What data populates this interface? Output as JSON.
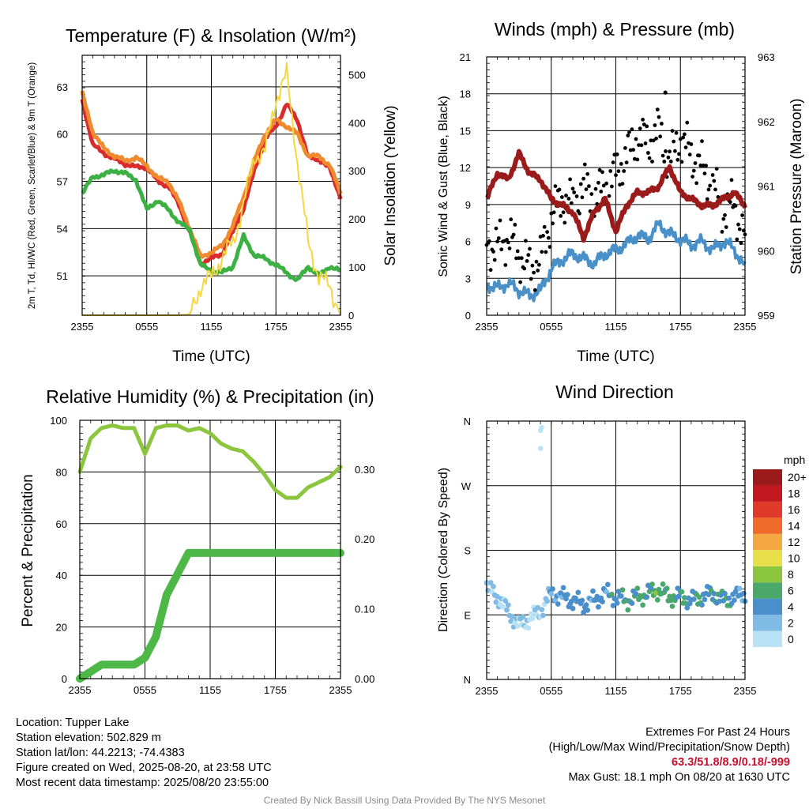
{
  "chart_data": [
    {
      "type": "line",
      "title": "Temperature (F) & Insolation (W/m²)",
      "xlabel": "Time (UTC)",
      "ylabel": "2m T, Td, HI/WC (Red, Green, Scarlet/Blue) & 9m T (Orange)",
      "y2label": "Solar Insolation (Yellow)",
      "x_ticks": [
        "2355",
        "0555",
        "1155",
        "1755",
        "2355"
      ],
      "ylim": [
        48.5,
        65
      ],
      "y_ticks": [
        51,
        54,
        57,
        60,
        63
      ],
      "y2lim": [
        0,
        540
      ],
      "y2_ticks": [
        0,
        100,
        200,
        300,
        400,
        500
      ],
      "x_hours": [
        0,
        1,
        2,
        3,
        4,
        5,
        6,
        7,
        8,
        9,
        10,
        11,
        12,
        13,
        14,
        15,
        16,
        17,
        18,
        19,
        20,
        21,
        22,
        23,
        24
      ],
      "series": [
        {
          "color": "#d92b2b",
          "axis": "left",
          "values": [
            62.2,
            59.3,
            58.8,
            58.4,
            58.1,
            57.9,
            57.9,
            57.0,
            56.7,
            55.5,
            53.8,
            51.8,
            52.1,
            52.4,
            53.8,
            55.3,
            57.7,
            59.7,
            60.5,
            61.9,
            60.9,
            58.5,
            58.4,
            57.8,
            56.0
          ]
        },
        {
          "color": "#f08a2e",
          "axis": "left",
          "values": [
            62.6,
            60.1,
            59.1,
            58.6,
            58.3,
            58.5,
            58.0,
            57.2,
            57.0,
            55.7,
            54.0,
            52.2,
            52.5,
            52.9,
            54.2,
            56.0,
            58.3,
            60.0,
            60.9,
            60.5,
            60.0,
            58.6,
            58.6,
            58.0,
            56.3
          ]
        },
        {
          "color": "#3cb043",
          "axis": "left",
          "values": [
            56.2,
            57.3,
            57.4,
            57.7,
            57.5,
            57.1,
            55.2,
            55.8,
            55.2,
            54.4,
            53.9,
            51.7,
            51.3,
            51.2,
            51.6,
            53.5,
            52.3,
            52.1,
            51.7,
            51.2,
            50.7,
            51.6,
            51.0,
            51.6,
            51.3
          ]
        },
        {
          "color": "#f5d742",
          "axis": "right",
          "values": [
            0,
            0,
            0,
            0,
            0,
            0,
            0,
            0,
            0,
            0,
            2,
            60,
            80,
            120,
            150,
            230,
            330,
            340,
            450,
            500,
            320,
            150,
            80,
            60,
            0
          ]
        }
      ]
    },
    {
      "type": "scatter",
      "title": "Winds (mph) & Pressure (mb)",
      "xlabel": "Time (UTC)",
      "ylabel": "Sonic Wind & Gust (Blue, Black)",
      "y2label": "Station Pressure (Maroon)",
      "x_ticks": [
        "2355",
        "0555",
        "1155",
        "1755",
        "2355"
      ],
      "ylim": [
        0,
        21
      ],
      "y_ticks": [
        0,
        3,
        6,
        9,
        12,
        15,
        18,
        21
      ],
      "y2lim": [
        959,
        963
      ],
      "y2_ticks": [
        959,
        960,
        961,
        962,
        963
      ],
      "x_hours": [
        0,
        1,
        2,
        3,
        4,
        5,
        6,
        7,
        8,
        9,
        10,
        11,
        12,
        13,
        14,
        15,
        16,
        17,
        18,
        19,
        20,
        21,
        22,
        23,
        24
      ],
      "series": [
        {
          "color": "#4a90c8",
          "kind": "line",
          "axis": "left",
          "values": [
            2.5,
            2.2,
            2.6,
            2.0,
            1.6,
            2.0,
            3.8,
            4.5,
            5.0,
            4.6,
            4.2,
            5.0,
            5.3,
            5.8,
            6.5,
            6.2,
            7.4,
            6.6,
            6.2,
            5.7,
            6.0,
            5.3,
            6.0,
            5.4,
            3.8
          ]
        },
        {
          "color": "#000000",
          "kind": "points",
          "axis": "left",
          "values": [
            6.0,
            5.5,
            6.5,
            5.0,
            3.8,
            4.5,
            8.0,
            9.5,
            9.0,
            10.5,
            9.5,
            10.5,
            11.5,
            13.0,
            14.5,
            14.0,
            15.0,
            12.5,
            14.5,
            13.0,
            12.0,
            10.5,
            8.5,
            9.0,
            6.0
          ]
        },
        {
          "color": "#9b1b1b",
          "kind": "line",
          "axis": "right",
          "values": [
            960.8,
            961.2,
            961.1,
            961.5,
            961.2,
            961.1,
            960.8,
            960.7,
            960.6,
            960.2,
            960.6,
            960.8,
            960.3,
            960.7,
            960.9,
            960.9,
            961.0,
            961.3,
            960.9,
            960.8,
            960.7,
            960.7,
            960.8,
            960.9,
            960.7
          ]
        },
        {
          "color": "#000000",
          "kind": "points",
          "label": "max gust",
          "axis": "left",
          "x_hour": 16.6,
          "values": [
            18.1
          ]
        }
      ]
    },
    {
      "type": "line",
      "title": "Relative Humidity (%) & Precipitation (in)",
      "ylabel": "Percent & Precipitation",
      "x_ticks": [
        "2355",
        "0555",
        "1155",
        "1755",
        "2355"
      ],
      "ylim": [
        0,
        100
      ],
      "y_ticks": [
        0,
        20,
        40,
        60,
        80,
        100
      ],
      "y2lim": [
        0,
        0.37
      ],
      "y2_ticks": [
        0.0,
        0.1,
        0.2,
        0.3
      ],
      "x_hours": [
        0,
        1,
        2,
        3,
        4,
        5,
        6,
        7,
        8,
        9,
        10,
        11,
        12,
        13,
        14,
        15,
        16,
        17,
        18,
        19,
        20,
        21,
        22,
        23,
        24
      ],
      "series": [
        {
          "color": "#8cc63f",
          "axis": "left",
          "values": [
            80,
            93,
            97,
            98,
            97,
            97,
            87,
            97,
            98,
            98,
            96,
            97,
            95,
            91,
            89,
            88,
            84,
            79,
            73,
            70,
            70,
            74,
            76,
            78,
            82
          ]
        },
        {
          "color": "#4db848",
          "axis": "right",
          "values": [
            0.0,
            0.01,
            0.02,
            0.02,
            0.02,
            0.02,
            0.03,
            0.06,
            0.12,
            0.15,
            0.18,
            0.18,
            0.18,
            0.18,
            0.18,
            0.18,
            0.18,
            0.18,
            0.18,
            0.18,
            0.18,
            0.18,
            0.18,
            0.18,
            0.18
          ]
        }
      ]
    },
    {
      "type": "scatter",
      "title": "Wind Direction",
      "ylabel": "Direction (Colored By Speed)",
      "x_ticks": [
        "2355",
        "0555",
        "1155",
        "1755",
        "2355"
      ],
      "y_ticks": [
        "N",
        "E",
        "S",
        "W",
        "N"
      ],
      "ylim": [
        0,
        360
      ],
      "x_hours": [
        0,
        1,
        2,
        3,
        4,
        5,
        6,
        7,
        8,
        9,
        10,
        11,
        12,
        13,
        14,
        15,
        16,
        17,
        18,
        19,
        20,
        21,
        22,
        23,
        24
      ],
      "values": [
        130,
        115,
        95,
        75,
        85,
        95,
        120,
        115,
        110,
        105,
        110,
        120,
        115,
        110,
        115,
        120,
        125,
        115,
        115,
        110,
        115,
        120,
        110,
        115,
        120
      ],
      "outliers": [
        {
          "x_hour": 5.0,
          "value": 347
        },
        {
          "x_hour": 5.1,
          "value": 351
        },
        {
          "x_hour": 5.0,
          "value": 322
        }
      ],
      "colorbar": {
        "label": "mph",
        "levels": [
          "0",
          "2",
          "4",
          "6",
          "8",
          "10",
          "12",
          "14",
          "16",
          "18",
          "20+"
        ],
        "colors": [
          "#b9e3f5",
          "#7fbbe4",
          "#4a8fcc",
          "#4aa86a",
          "#8cc63f",
          "#e8e04a",
          "#f5a742",
          "#f06a2a",
          "#e03a2a",
          "#c0181e",
          "#9b1b1b"
        ]
      }
    }
  ],
  "info": {
    "location": "Location: Tupper Lake",
    "elevation": "Station elevation: 502.829 m",
    "latlon": "Station lat/lon: 44.2213; -74.4383",
    "created": "Figure created on Wed, 2025-08-20, at 23:58 UTC",
    "recent": "Most recent data timestamp: 2025/08/20 23:55:00"
  },
  "extremes": {
    "title": "Extremes For Past 24 Hours",
    "subtitle": "(High/Low/Max Wind/Precipitation/Snow Depth)",
    "values": "63.3/51.8/8.9/0.18/-999",
    "gust": "Max Gust: 18.1 mph On 08/20 at 1630 UTC"
  },
  "credit": "Created By Nick Bassill Using Data Provided By The NYS Mesonet"
}
